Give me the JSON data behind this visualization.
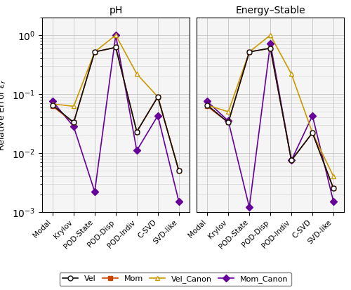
{
  "categories": [
    "Modal",
    "Krylov",
    "POD-State",
    "POD-Disp",
    "POD-Indiv",
    "C-SVD",
    "SVD-like"
  ],
  "pH": {
    "Vel": [
      0.065,
      0.033,
      0.52,
      0.62,
      0.023,
      0.09,
      0.005
    ],
    "Mom": [
      0.062,
      0.033,
      0.52,
      0.62,
      0.023,
      0.09,
      0.005
    ],
    "Vel_Canon": [
      0.068,
      0.062,
      0.52,
      1.0,
      0.22,
      0.09,
      0.005
    ],
    "Mom_Canon": [
      0.075,
      0.028,
      0.0022,
      1.0,
      0.011,
      0.043,
      0.0015
    ]
  },
  "energy_stable": {
    "Vel": [
      0.065,
      0.033,
      0.52,
      0.6,
      0.0075,
      0.022,
      0.0025
    ],
    "Mom": [
      0.062,
      0.033,
      0.52,
      0.6,
      0.0075,
      0.022,
      0.0025
    ],
    "Vel_Canon": [
      0.065,
      0.05,
      0.52,
      1.0,
      0.22,
      0.022,
      0.004
    ],
    "Mom_Canon": [
      0.075,
      0.035,
      0.0012,
      0.72,
      0.0075,
      0.043,
      0.0015
    ]
  },
  "series": [
    "Vel",
    "Mom",
    "Vel_Canon",
    "Mom_Canon"
  ],
  "series_labels": [
    "Vel",
    "Mom",
    "Vel_Canon",
    "Mom_Canon"
  ],
  "colors": {
    "Vel": "#111111",
    "Mom": "#cc4400",
    "Vel_Canon": "#cc9900",
    "Mom_Canon": "#660099"
  },
  "markers": {
    "Vel": "o",
    "Mom": "s",
    "Vel_Canon": "^",
    "Mom_Canon": "D"
  },
  "subplot_titles": [
    "pH",
    "Energy–Stable"
  ],
  "ylabel": "Relative Error $\\varepsilon_r$",
  "ylim": [
    0.001,
    2.0
  ],
  "yticks": [
    0.001,
    0.01,
    0.1,
    1.0
  ],
  "grid_color": "#cccccc",
  "bg_plot": "#f5f5f5",
  "bg_fig": "#ffffff"
}
